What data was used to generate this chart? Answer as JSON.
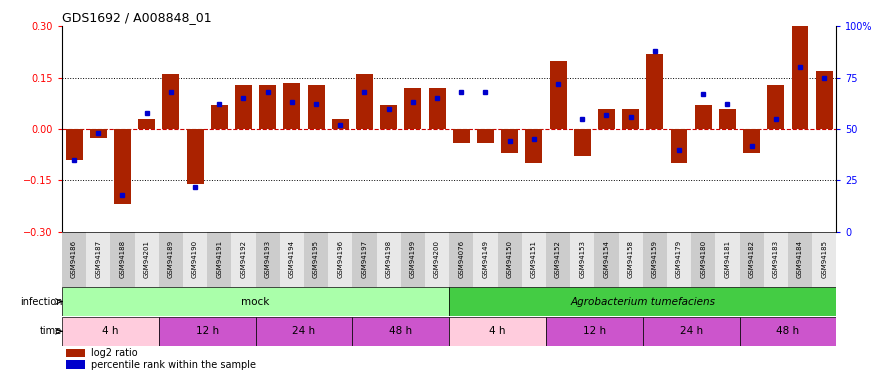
{
  "title": "GDS1692 / A008848_01",
  "samples": [
    "GSM94186",
    "GSM94187",
    "GSM94188",
    "GSM94201",
    "GSM94189",
    "GSM94190",
    "GSM94191",
    "GSM94192",
    "GSM94193",
    "GSM94194",
    "GSM94195",
    "GSM94196",
    "GSM94197",
    "GSM94198",
    "GSM94199",
    "GSM94200",
    "GSM94076",
    "GSM94149",
    "GSM94150",
    "GSM94151",
    "GSM94152",
    "GSM94153",
    "GSM94154",
    "GSM94158",
    "GSM94159",
    "GSM94179",
    "GSM94180",
    "GSM94181",
    "GSM94182",
    "GSM94183",
    "GSM94184",
    "GSM94185"
  ],
  "log2_ratio": [
    -0.09,
    -0.025,
    -0.22,
    0.03,
    0.16,
    -0.16,
    0.07,
    0.13,
    0.13,
    0.135,
    0.13,
    0.03,
    0.16,
    0.07,
    0.12,
    0.12,
    -0.04,
    -0.04,
    -0.07,
    -0.1,
    0.2,
    -0.08,
    0.06,
    0.06,
    0.22,
    -0.1,
    0.07,
    0.06,
    -0.07,
    0.13,
    0.3,
    0.17
  ],
  "percentile": [
    35,
    48,
    18,
    58,
    68,
    22,
    62,
    65,
    68,
    63,
    62,
    52,
    68,
    60,
    63,
    65,
    68,
    68,
    44,
    45,
    72,
    55,
    57,
    56,
    88,
    40,
    67,
    62,
    42,
    55,
    80,
    75
  ],
  "infection_groups": [
    {
      "label": "mock",
      "start": 0,
      "end": 16,
      "color": "#aaffaa"
    },
    {
      "label": "Agrobacterium tumefaciens",
      "start": 16,
      "end": 32,
      "color": "#44cc44"
    }
  ],
  "time_groups": [
    {
      "label": "4 h",
      "start": 0,
      "end": 4,
      "color": "#ffccdd"
    },
    {
      "label": "12 h",
      "start": 4,
      "end": 8,
      "color": "#dd66dd"
    },
    {
      "label": "24 h",
      "start": 8,
      "end": 12,
      "color": "#dd66dd"
    },
    {
      "label": "48 h",
      "start": 12,
      "end": 16,
      "color": "#dd66dd"
    },
    {
      "label": "4 h",
      "start": 16,
      "end": 20,
      "color": "#ffccdd"
    },
    {
      "label": "12 h",
      "start": 20,
      "end": 24,
      "color": "#dd66dd"
    },
    {
      "label": "24 h",
      "start": 24,
      "end": 28,
      "color": "#dd66dd"
    },
    {
      "label": "48 h",
      "start": 28,
      "end": 32,
      "color": "#dd66dd"
    }
  ],
  "ylim": [
    -0.3,
    0.3
  ],
  "yticks_left": [
    -0.3,
    -0.15,
    0,
    0.15,
    0.3
  ],
  "yticks_right": [
    0,
    25,
    50,
    75,
    100
  ],
  "bar_color": "#aa2200",
  "dot_color": "#0000cc",
  "zero_line_color": "#cc0000",
  "hline_color": "#000000",
  "background_plot": "#ffffff",
  "legend_ratio_label": "log2 ratio",
  "legend_pct_label": "percentile rank within the sample",
  "label_bg_odd": "#cccccc",
  "label_bg_even": "#e8e8e8"
}
